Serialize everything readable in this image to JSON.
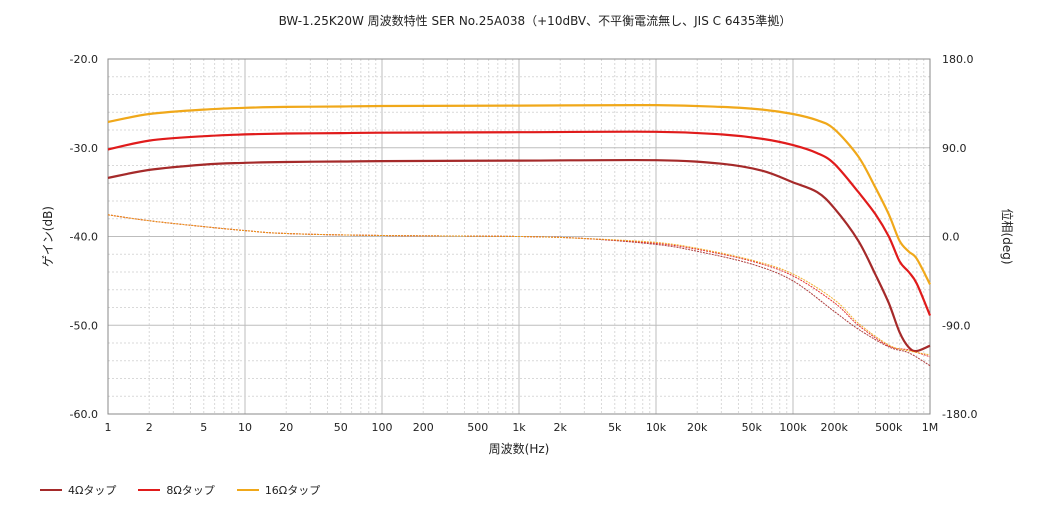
{
  "chart_data": {
    "type": "line",
    "title": "BW-1.25K20W 周波数特性 SER No.25A038（+10dBV、不平衡電流無し、JIS C 6435準拠）",
    "xlabel": "周波数(Hz)",
    "ylabel": "ゲイン(dB)",
    "y2label": "位相(deg)",
    "xscale": "log",
    "xlim": [
      1,
      1000000
    ],
    "ylim": [
      -60,
      -20
    ],
    "y2lim": [
      -180,
      180
    ],
    "grid": true,
    "legend_position": "bottom-left",
    "x_ticks": [
      "1",
      "2",
      "5",
      "10",
      "20",
      "50",
      "100",
      "200",
      "500",
      "1k",
      "2k",
      "5k",
      "10k",
      "20k",
      "50k",
      "100k",
      "200k",
      "500k",
      "1M"
    ],
    "y_ticks": [
      "-20.0",
      "-30.0",
      "-40.0",
      "-50.0",
      "-60.0"
    ],
    "y2_ticks": [
      "180.0",
      "90.0",
      "0.0",
      "-90.0",
      "-180.0"
    ],
    "series": [
      {
        "name": "4Ωタップ",
        "color": "#a52a2a",
        "axis": "gain",
        "x": [
          1,
          2,
          5,
          10,
          20,
          50,
          100,
          1000,
          10000,
          30000,
          60000,
          100000,
          150000,
          200000,
          300000,
          400000,
          500000,
          600000,
          700000,
          800000,
          1000000
        ],
        "y": [
          -33.4,
          -32.5,
          -31.9,
          -31.7,
          -31.6,
          -31.55,
          -31.5,
          -31.45,
          -31.4,
          -31.8,
          -32.6,
          -33.9,
          -35.0,
          -36.8,
          -40.5,
          -44.3,
          -47.5,
          -50.8,
          -52.5,
          -52.9,
          -52.3
        ]
      },
      {
        "name": "8Ωタップ",
        "color": "#e01b1b",
        "axis": "gain",
        "x": [
          1,
          2,
          5,
          10,
          20,
          50,
          100,
          1000,
          10000,
          30000,
          60000,
          100000,
          150000,
          200000,
          300000,
          400000,
          500000,
          600000,
          700000,
          800000,
          1000000
        ],
        "y": [
          -30.2,
          -29.2,
          -28.7,
          -28.5,
          -28.4,
          -28.35,
          -28.3,
          -28.25,
          -28.2,
          -28.5,
          -29.0,
          -29.7,
          -30.6,
          -31.8,
          -35.0,
          -37.5,
          -40.0,
          -42.8,
          -44.0,
          -45.3,
          -48.9
        ]
      },
      {
        "name": "16Ωタップ",
        "color": "#f0a81a",
        "axis": "gain",
        "x": [
          1,
          2,
          5,
          10,
          20,
          50,
          100,
          1000,
          10000,
          30000,
          60000,
          100000,
          150000,
          200000,
          300000,
          400000,
          500000,
          600000,
          700000,
          800000,
          1000000
        ],
        "y": [
          -27.1,
          -26.2,
          -25.7,
          -25.5,
          -25.4,
          -25.35,
          -25.3,
          -25.25,
          -25.2,
          -25.4,
          -25.7,
          -26.2,
          -26.9,
          -27.9,
          -31.0,
          -34.5,
          -37.5,
          -40.5,
          -41.7,
          -42.5,
          -45.4
        ]
      },
      {
        "name": "4Ωタップ位相",
        "color": "#a52a2a",
        "axis": "phase",
        "x": [
          1,
          2,
          5,
          10,
          20,
          100,
          1000,
          3000,
          10000,
          20000,
          50000,
          100000,
          200000,
          300000,
          500000,
          700000,
          1000000
        ],
        "y": [
          22,
          16,
          10,
          6,
          3,
          1,
          0,
          -2,
          -8,
          -15,
          -28,
          -45,
          -76,
          -94,
          -112,
          -118,
          -131
        ]
      },
      {
        "name": "8Ωタップ位相",
        "color": "#e01b1b",
        "axis": "phase",
        "x": [
          1,
          2,
          5,
          10,
          20,
          100,
          1000,
          3000,
          10000,
          20000,
          50000,
          100000,
          200000,
          300000,
          500000,
          700000,
          1000000
        ],
        "y": [
          22,
          16,
          10,
          6,
          3,
          1,
          0,
          -2,
          -7,
          -13,
          -25,
          -40,
          -67,
          -90,
          -111,
          -115,
          -122
        ]
      },
      {
        "name": "16Ωタップ位相",
        "color": "#f0a81a",
        "axis": "phase",
        "x": [
          1,
          2,
          5,
          10,
          20,
          100,
          1000,
          3000,
          10000,
          20000,
          50000,
          100000,
          200000,
          300000,
          500000,
          700000,
          1000000
        ],
        "y": [
          22,
          16,
          10,
          6,
          3,
          1,
          0,
          -2,
          -6,
          -12,
          -24,
          -38,
          -64,
          -88,
          -110,
          -116,
          -120
        ]
      }
    ]
  },
  "legend": [
    {
      "label": "4Ωタップ",
      "color": "#a52a2a"
    },
    {
      "label": "8Ωタップ",
      "color": "#e01b1b"
    },
    {
      "label": "16Ωタップ",
      "color": "#f0a81a"
    }
  ]
}
